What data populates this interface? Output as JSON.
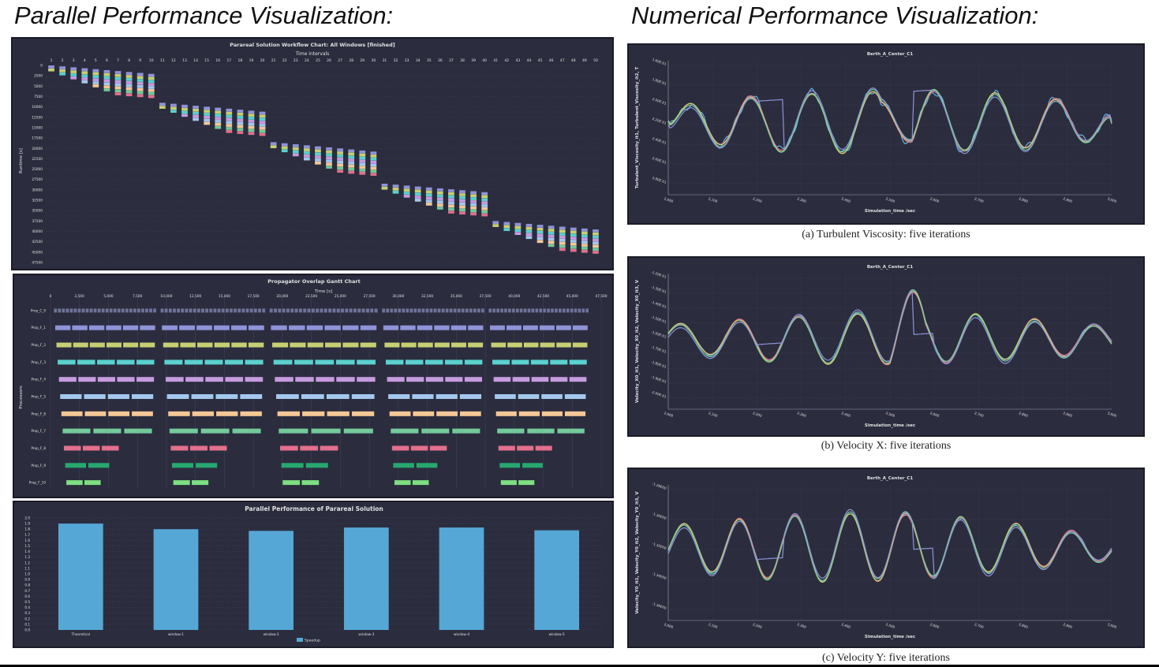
{
  "headings": {
    "left": "Parallel Performance Visualization:",
    "right": "Numerical Performance Visualization:"
  },
  "colors": {
    "background": "#2b2d3e",
    "text": "#e0e0e0",
    "grid": "#41445a",
    "palette": [
      "#8f93d8",
      "#c7cf72",
      "#5ad1cf",
      "#c79be0",
      "#a4c8ef",
      "#f4c896",
      "#74c99b",
      "#e2708c",
      "#26a86f",
      "#7ddf82"
    ]
  },
  "chart_data": [
    {
      "id": "workflow",
      "type": "heatmap",
      "title": "Parareal Solution Workflow Chart: All Windows [finished]",
      "xlabel": "Time intervals",
      "ylabel": "Runtime [s]",
      "x_ticks": [
        "1",
        "2",
        "3",
        "4",
        "5",
        "6",
        "7",
        "8",
        "9",
        "10",
        "11",
        "12",
        "13",
        "14",
        "15",
        "16",
        "17",
        "18",
        "19",
        "20",
        "21",
        "22",
        "23",
        "24",
        "25",
        "26",
        "27",
        "28",
        "29",
        "30",
        "31",
        "32",
        "33",
        "34",
        "35",
        "36",
        "37",
        "38",
        "39",
        "40",
        "41",
        "42",
        "43",
        "44",
        "45",
        "46",
        "47",
        "48",
        "49",
        "50"
      ],
      "y_ticks": [
        "0",
        "2500",
        "5000",
        "7500",
        "10000",
        "12500",
        "15000",
        "17500",
        "20000",
        "22500",
        "25000",
        "27500",
        "30000",
        "32500",
        "35000",
        "37500",
        "40000",
        "42500",
        "45000",
        "47500"
      ],
      "ylim": [
        0,
        47500
      ],
      "windows": [
        {
          "start": 1,
          "end": 10,
          "t0": 0,
          "t1": 9000
        },
        {
          "start": 11,
          "end": 20,
          "t0": 9000,
          "t1": 18500
        },
        {
          "start": 21,
          "end": 30,
          "t0": 18500,
          "t1": 28500
        },
        {
          "start": 31,
          "end": 40,
          "t0": 28500,
          "t1": 37500
        },
        {
          "start": 41,
          "end": 50,
          "t0": 37500,
          "t1": 46500
        }
      ]
    },
    {
      "id": "gantt",
      "type": "bar",
      "title": "Propagator Overlap Gantt Chart",
      "xlabel": "Time [s]",
      "ylabel": "Processors",
      "x_ticks": [
        "0",
        "2,500",
        "5,000",
        "7,500",
        "10,000",
        "12,500",
        "15,000",
        "17,500",
        "20,000",
        "22,500",
        "25,000",
        "27,500",
        "30,000",
        "32,500",
        "35,000",
        "37,500",
        "40,000",
        "42,500",
        "45,000",
        "47,500"
      ],
      "xlim": [
        0,
        47500
      ],
      "processors": [
        "Prop_C_0",
        "Prop_F_1",
        "Prop_F_2",
        "Prop_F_3",
        "Prop_F_4",
        "Prop_F_5",
        "Prop_F_6",
        "Prop_F_7",
        "Prop_F_8",
        "Prop_F_9",
        "Prop_F_10"
      ],
      "windows": [
        [
          300,
          9200
        ],
        [
          9500,
          18600
        ],
        [
          18900,
          28300
        ],
        [
          28600,
          37500
        ],
        [
          37800,
          46500
        ]
      ]
    },
    {
      "id": "speedup",
      "type": "bar",
      "title": "Parallel Performance of Parareal Solution",
      "categories": [
        "Theoretical",
        "window-1",
        "window-2",
        "window-3",
        "window-4",
        "window-5"
      ],
      "series": [
        {
          "name": "Speedup",
          "values": [
            1.9,
            1.8,
            1.77,
            1.83,
            1.83,
            1.78
          ]
        }
      ],
      "y_ticks": [
        "0.0",
        "0.1",
        "0.2",
        "0.3",
        "0.4",
        "0.5",
        "0.6",
        "0.7",
        "0.8",
        "0.9",
        "1.0",
        "1.1",
        "1.2",
        "1.3",
        "1.4",
        "1.5",
        "1.6",
        "1.7",
        "1.8",
        "1.9",
        "2.0"
      ],
      "ylim": [
        0,
        2.0
      ],
      "legend": "bottom-center"
    },
    {
      "id": "turb",
      "type": "line",
      "title": "Berth_A_Center_C1",
      "xlabel": "Simulation_time /sec",
      "ylabel": "Turbulent_Viscosity_it1, Turbulent_Viscosity_it2, T",
      "x_ticks": [
        "2,000",
        "2,100",
        "2,200",
        "2,300",
        "2,400",
        "2,500",
        "2,600",
        "2,700",
        "2,800",
        "2,900",
        "3,000"
      ],
      "y_ticks": [
        "1.60E-01",
        "1.80E-01",
        "2.00E-01",
        "2.20E-01",
        "2.40E-01",
        "2.60E-01",
        "2.80E-01"
      ],
      "ylim": [
        0,
        1
      ]
    },
    {
      "id": "velx",
      "type": "line",
      "title": "Berth_A_Center_C1",
      "xlabel": "Simulation_time /sec",
      "ylabel": "Velocity_X0_it1, Velocity_X0_it2, Velocity_X0_it3, V",
      "x_ticks": [
        "2,000",
        "2,100",
        "2,200",
        "2,300",
        "2,400",
        "2,500",
        "2,600",
        "2,700",
        "2,800",
        "2,900",
        "3,000"
      ],
      "y_ticks": [
        "-1.20E-01",
        "-1.30E-01",
        "-1.40E-01",
        "-1.50E-01",
        "-1.60E-01",
        "-1.70E-01",
        "-1.80E-01",
        "-1.90E-01",
        "-2.00E-01"
      ],
      "ylim": [
        0,
        1
      ]
    },
    {
      "id": "vely",
      "type": "line",
      "title": "Berth_A_Center_C1",
      "xlabel": "Simulation_time /sec",
      "ylabel": "Velocity_Y0_it1, Velocity_Y0_it2, Velocity_Y0_it3, V",
      "x_ticks": [
        "2,000",
        "2,100",
        "2,200",
        "2,300",
        "2,400",
        "2,500",
        "2,600",
        "2,700",
        "2,800",
        "2,900",
        "3,000"
      ],
      "y_ticks": [
        "-1.28E00",
        "-1.30E00",
        "-1.32E00",
        "-1.34E00",
        "-1.36E00"
      ],
      "ylim": [
        0,
        1
      ]
    }
  ],
  "captions": {
    "a": "(a) Turbulent Viscosity: five iterations",
    "b": "(b) Velocity X: five iterations",
    "c": "(c) Velocity Y: five iterations"
  }
}
